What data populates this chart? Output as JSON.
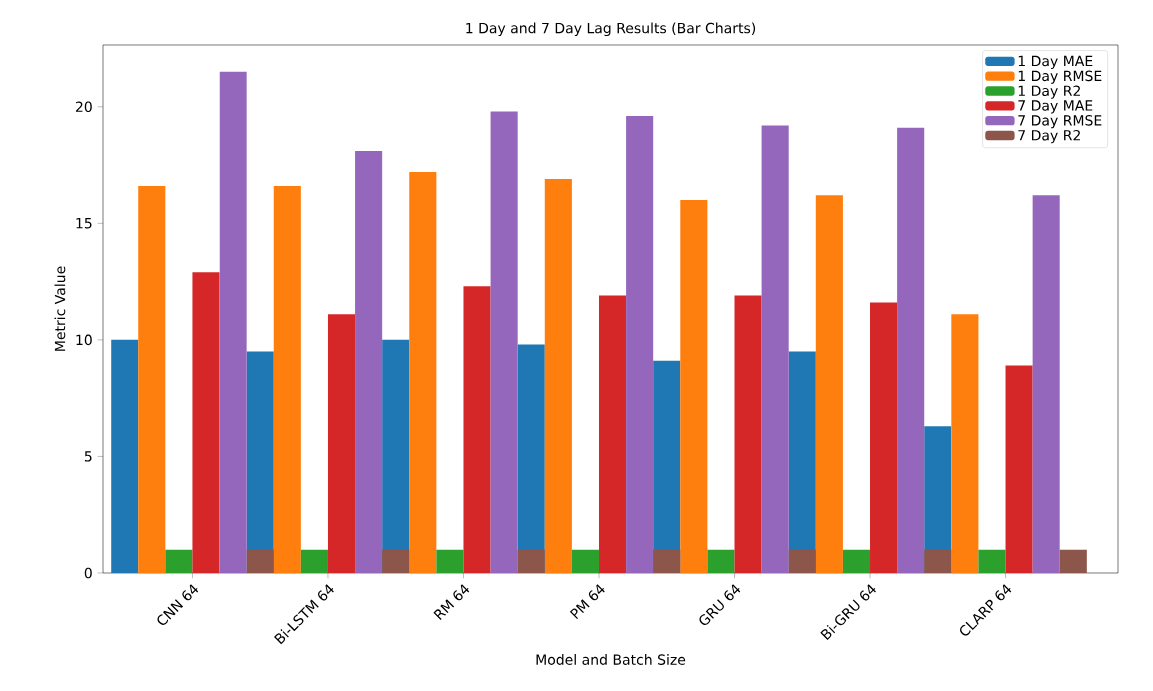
{
  "chart_data": {
    "type": "bar",
    "title": "1 Day and 7 Day Lag Results (Bar Charts)",
    "xlabel": "Model and Batch Size",
    "ylabel": "Metric Value",
    "categories": [
      "CNN 64",
      "Bi-LSTM 64",
      "RM 64",
      "PM 64",
      "GRU 64",
      "Bi-GRU 64",
      "CLARP 64"
    ],
    "series": [
      {
        "name": "1 Day MAE",
        "color": "#1f77b4",
        "values": [
          10.0,
          9.5,
          10.0,
          9.8,
          9.1,
          9.5,
          6.3
        ]
      },
      {
        "name": "1 Day RMSE",
        "color": "#ff7f0e",
        "values": [
          16.6,
          16.6,
          17.2,
          16.9,
          16.0,
          16.2,
          11.1
        ]
      },
      {
        "name": "1 Day R2",
        "color": "#2ca02c",
        "values": [
          1.0,
          1.0,
          1.0,
          1.0,
          1.0,
          1.0,
          1.0
        ]
      },
      {
        "name": "7 Day MAE",
        "color": "#d62728",
        "values": [
          12.9,
          11.1,
          12.3,
          11.9,
          11.9,
          11.6,
          8.9
        ]
      },
      {
        "name": "7 Day RMSE",
        "color": "#9467bd",
        "values": [
          21.5,
          18.1,
          19.8,
          19.6,
          19.2,
          19.1,
          16.2
        ]
      },
      {
        "name": "7 Day R2",
        "color": "#8c564b",
        "values": [
          1.0,
          1.0,
          1.0,
          1.0,
          1.0,
          1.0,
          1.0
        ]
      }
    ],
    "ylim": [
      0,
      22.65
    ],
    "yticks": [
      0,
      5,
      10,
      15,
      20
    ],
    "legend": "top right"
  }
}
